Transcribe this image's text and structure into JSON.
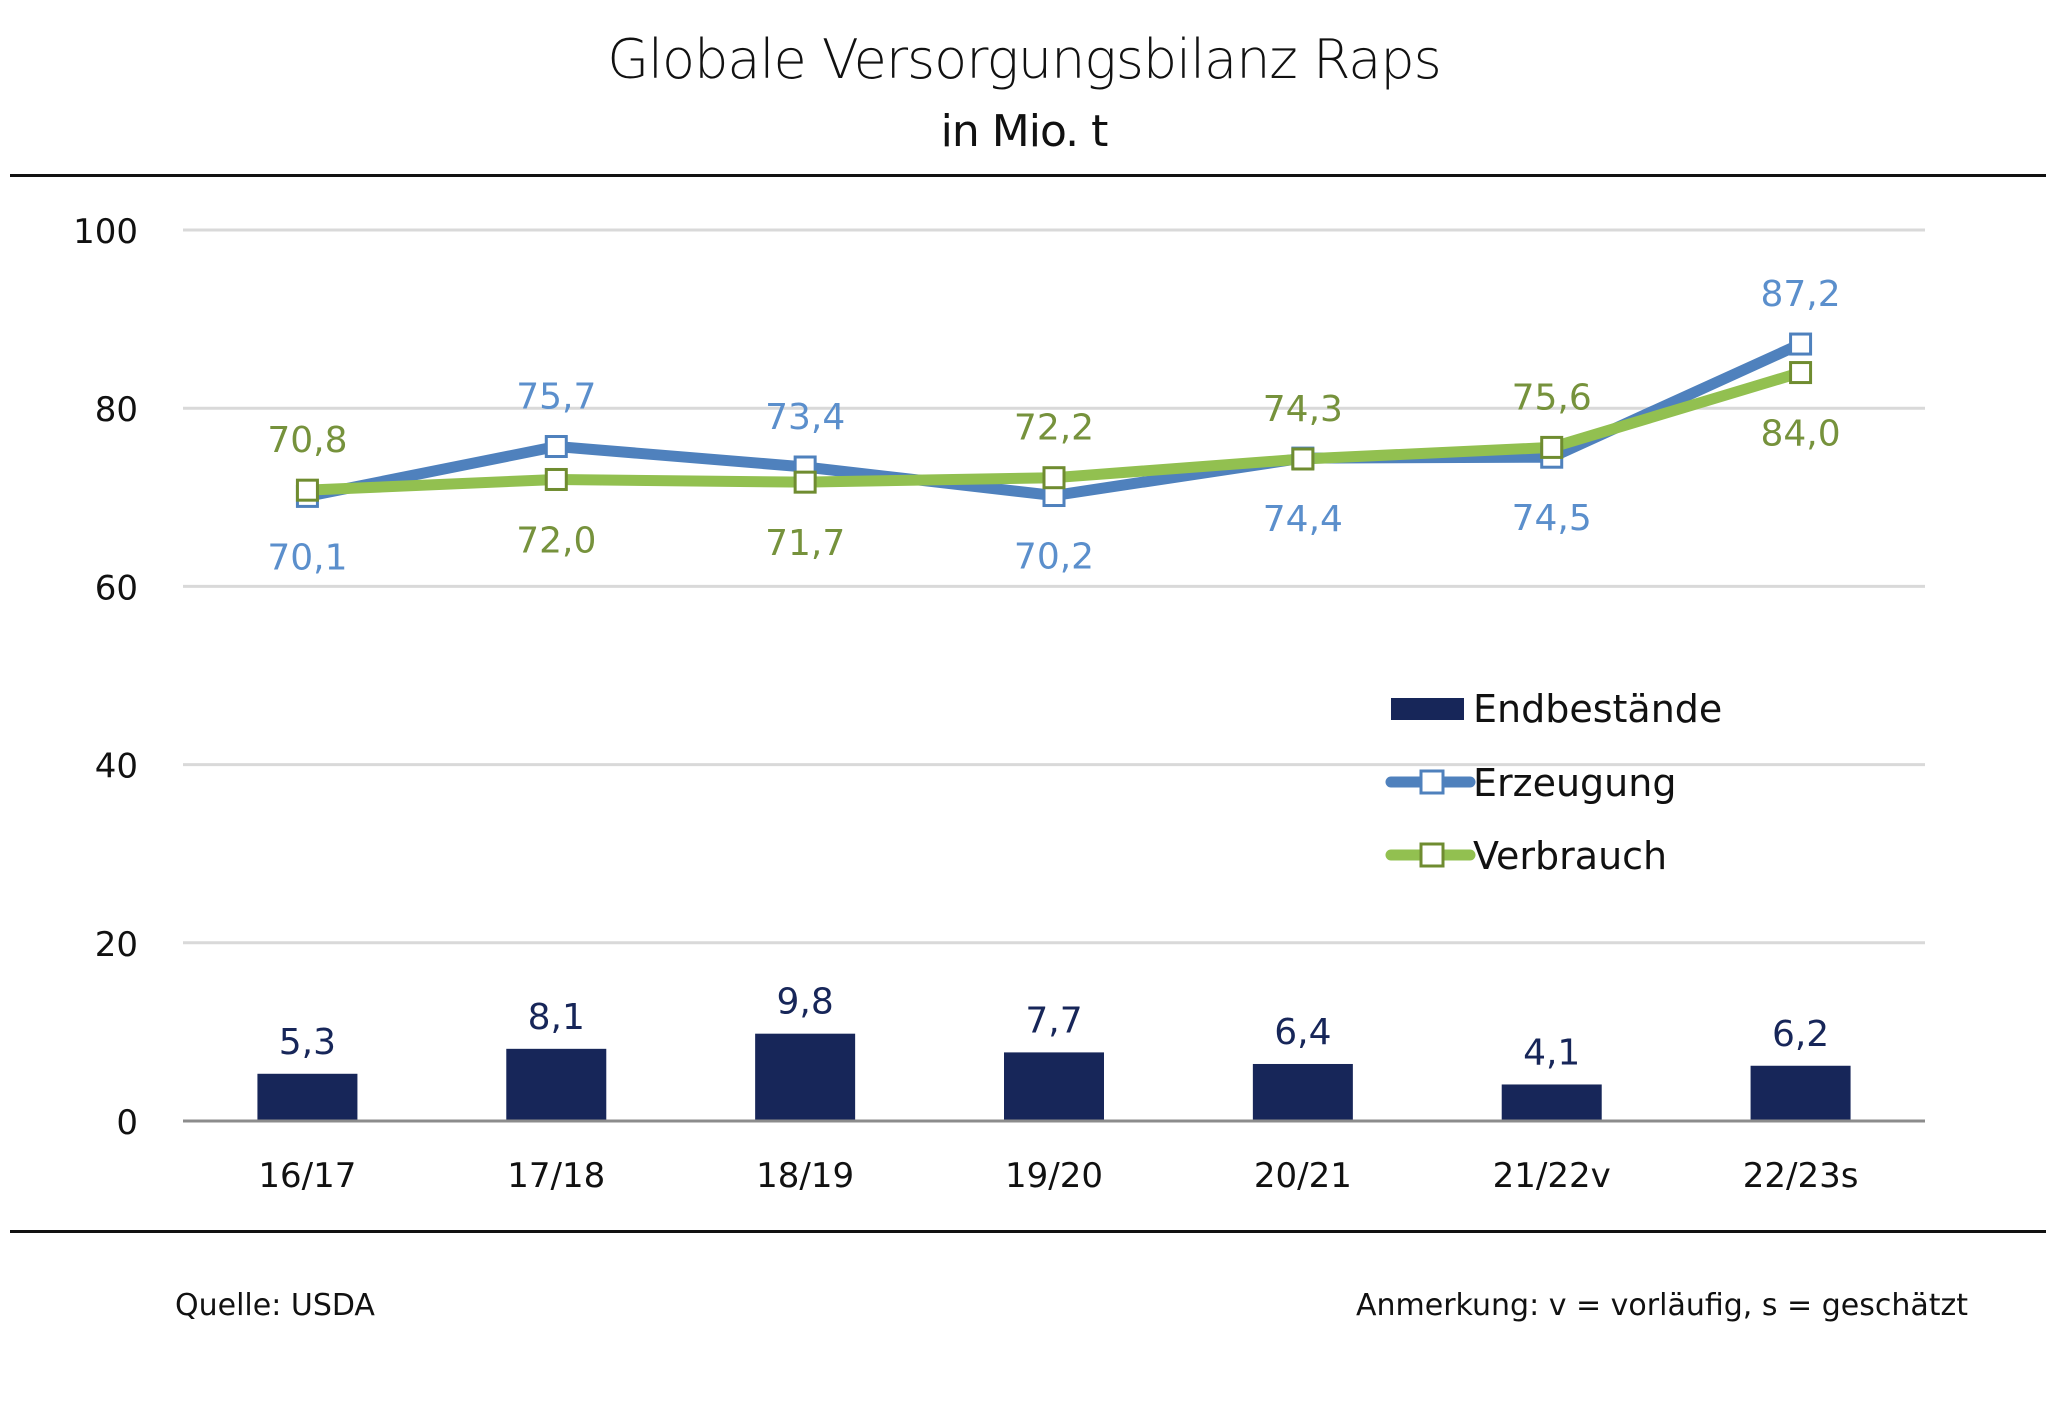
{
  "chart_data": {
    "type": "bar+line",
    "title": "Globale Versorgungsbilanz Raps",
    "subtitle": "in Mio. t",
    "categories": [
      "16/17",
      "17/18",
      "18/19",
      "19/20",
      "20/21",
      "21/22v",
      "22/23s"
    ],
    "ylim": [
      0,
      100
    ],
    "yticks": [
      0,
      20,
      40,
      60,
      80,
      100
    ],
    "ytick_labels": [
      "0",
      "20",
      "40",
      "60",
      "80",
      "100"
    ],
    "grid": true,
    "legend_position": "right-middle",
    "series": [
      {
        "name": "Endbestände",
        "type": "bar",
        "color": "#172659",
        "values": [
          5.3,
          8.1,
          9.8,
          7.7,
          6.4,
          4.1,
          6.2
        ],
        "labels": [
          "5,3",
          "8,1",
          "9,8",
          "7,7",
          "6,4",
          "4,1",
          "6,2"
        ],
        "label_pos": [
          "above",
          "above",
          "above",
          "above",
          "above",
          "above",
          "above"
        ]
      },
      {
        "name": "Erzeugung",
        "type": "line",
        "color": "#4f81bd",
        "marker_edge": "#4f81bd",
        "label_color": "#5b8fcc",
        "values": [
          70.1,
          75.7,
          73.4,
          70.2,
          74.4,
          74.5,
          87.2
        ],
        "labels": [
          "70,1",
          "75,7",
          "73,4",
          "70,2",
          "74,4",
          "74,5",
          "87,2"
        ],
        "label_pos": [
          "below",
          "above",
          "above",
          "below",
          "below",
          "below",
          "above"
        ]
      },
      {
        "name": "Verbrauch",
        "type": "line",
        "color": "#92c050",
        "marker_edge": "#6f8c30",
        "label_color": "#76923c",
        "values": [
          70.8,
          72.0,
          71.7,
          72.2,
          74.3,
          75.6,
          84.0
        ],
        "labels": [
          "70,8",
          "72,0",
          "71,7",
          "72,2",
          "74,3",
          "75,6",
          "84,0"
        ],
        "label_pos": [
          "above",
          "below",
          "below",
          "above",
          "above",
          "above",
          "below"
        ]
      }
    ]
  },
  "footer": {
    "source": "Quelle: USDA",
    "note": "Anmerkung: v = vorläufig, s = geschätzt"
  }
}
